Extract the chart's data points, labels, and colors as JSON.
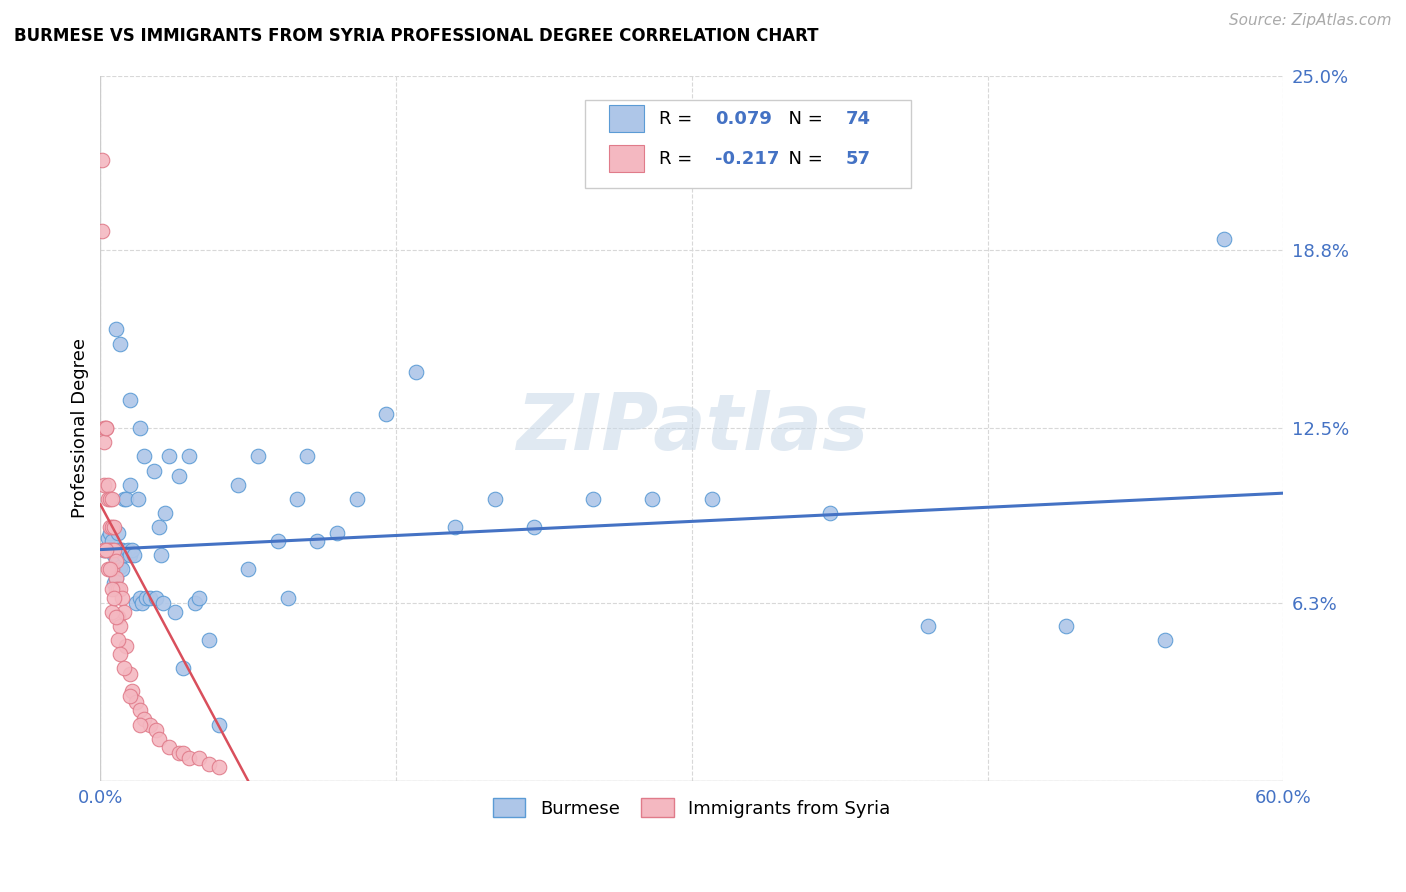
{
  "title": "BURMESE VS IMMIGRANTS FROM SYRIA PROFESSIONAL DEGREE CORRELATION CHART",
  "source": "Source: ZipAtlas.com",
  "ylabel": "Professional Degree",
  "xlim": [
    0.0,
    0.6
  ],
  "ylim": [
    0.0,
    0.25
  ],
  "xticks": [
    0.0,
    0.15,
    0.3,
    0.45,
    0.6
  ],
  "xticklabels": [
    "0.0%",
    "",
    "",
    "",
    "60.0%"
  ],
  "ytick_positions": [
    0.0,
    0.063,
    0.125,
    0.188,
    0.25
  ],
  "yticklabels": [
    "",
    "6.3%",
    "12.5%",
    "18.8%",
    "25.0%"
  ],
  "watermark": "ZIPatlas",
  "burmese_color": "#aec6e8",
  "burmese_edge_color": "#5b9bd5",
  "syria_color": "#f4b8c1",
  "syria_edge_color": "#e07b8a",
  "trendline_burmese_color": "#4472c4",
  "trendline_syria_color": "#d94f5c",
  "burmese_R": 0.079,
  "burmese_N": 74,
  "syria_R": -0.217,
  "syria_N": 57,
  "burmese_trendline_x": [
    0.0,
    0.6
  ],
  "burmese_trendline_y": [
    0.082,
    0.102
  ],
  "syria_trendline_x": [
    0.0,
    0.075
  ],
  "syria_trendline_y": [
    0.098,
    0.0
  ],
  "burmese_points_x": [
    0.002,
    0.003,
    0.004,
    0.005,
    0.005,
    0.006,
    0.006,
    0.007,
    0.007,
    0.008,
    0.008,
    0.009,
    0.009,
    0.01,
    0.01,
    0.011,
    0.011,
    0.012,
    0.012,
    0.013,
    0.014,
    0.015,
    0.015,
    0.016,
    0.017,
    0.018,
    0.019,
    0.02,
    0.021,
    0.022,
    0.023,
    0.025,
    0.027,
    0.028,
    0.03,
    0.031,
    0.032,
    0.033,
    0.035,
    0.038,
    0.04,
    0.042,
    0.045,
    0.048,
    0.05,
    0.055,
    0.06,
    0.07,
    0.075,
    0.08,
    0.09,
    0.095,
    0.1,
    0.105,
    0.11,
    0.12,
    0.13,
    0.145,
    0.16,
    0.18,
    0.2,
    0.22,
    0.25,
    0.28,
    0.31,
    0.37,
    0.42,
    0.49,
    0.54,
    0.57,
    0.008,
    0.01,
    0.015,
    0.02
  ],
  "burmese_points_y": [
    0.082,
    0.082,
    0.086,
    0.082,
    0.088,
    0.075,
    0.085,
    0.07,
    0.08,
    0.072,
    0.08,
    0.082,
    0.088,
    0.076,
    0.082,
    0.075,
    0.082,
    0.1,
    0.08,
    0.1,
    0.082,
    0.08,
    0.105,
    0.082,
    0.08,
    0.063,
    0.1,
    0.065,
    0.063,
    0.115,
    0.065,
    0.065,
    0.11,
    0.065,
    0.09,
    0.08,
    0.063,
    0.095,
    0.115,
    0.06,
    0.108,
    0.04,
    0.115,
    0.063,
    0.065,
    0.05,
    0.02,
    0.105,
    0.075,
    0.115,
    0.085,
    0.065,
    0.1,
    0.115,
    0.085,
    0.088,
    0.1,
    0.13,
    0.145,
    0.09,
    0.1,
    0.09,
    0.1,
    0.1,
    0.1,
    0.095,
    0.055,
    0.055,
    0.05,
    0.192,
    0.16,
    0.155,
    0.135,
    0.125
  ],
  "syria_points_x": [
    0.001,
    0.001,
    0.002,
    0.002,
    0.002,
    0.003,
    0.003,
    0.004,
    0.004,
    0.004,
    0.005,
    0.005,
    0.005,
    0.006,
    0.006,
    0.006,
    0.006,
    0.007,
    0.007,
    0.008,
    0.008,
    0.008,
    0.009,
    0.009,
    0.01,
    0.01,
    0.011,
    0.012,
    0.013,
    0.015,
    0.016,
    0.018,
    0.02,
    0.022,
    0.025,
    0.028,
    0.03,
    0.035,
    0.04,
    0.042,
    0.045,
    0.05,
    0.055,
    0.06,
    0.002,
    0.003,
    0.004,
    0.005,
    0.006,
    0.006,
    0.007,
    0.008,
    0.009,
    0.01,
    0.012,
    0.015,
    0.02
  ],
  "syria_points_y": [
    0.22,
    0.195,
    0.125,
    0.12,
    0.105,
    0.125,
    0.125,
    0.105,
    0.1,
    0.082,
    0.1,
    0.09,
    0.082,
    0.1,
    0.09,
    0.082,
    0.075,
    0.09,
    0.082,
    0.078,
    0.072,
    0.068,
    0.068,
    0.058,
    0.068,
    0.055,
    0.065,
    0.06,
    0.048,
    0.038,
    0.032,
    0.028,
    0.025,
    0.022,
    0.02,
    0.018,
    0.015,
    0.012,
    0.01,
    0.01,
    0.008,
    0.008,
    0.006,
    0.005,
    0.082,
    0.082,
    0.075,
    0.075,
    0.068,
    0.06,
    0.065,
    0.058,
    0.05,
    0.045,
    0.04,
    0.03,
    0.02
  ],
  "background_color": "#ffffff",
  "grid_color": "#d8d8d8"
}
